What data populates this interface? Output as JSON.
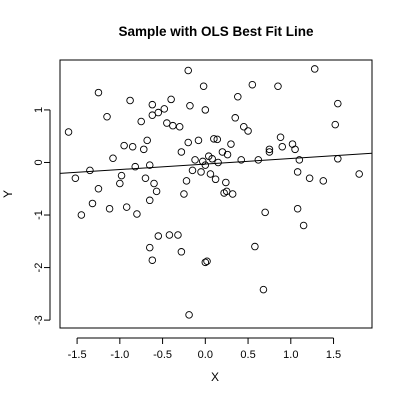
{
  "chart_data": {
    "type": "scatter",
    "title": "Sample with OLS Best Fit Line",
    "xlabel": "X",
    "ylabel": "Y",
    "xlim": [
      -1.7,
      1.95
    ],
    "ylim": [
      -3.15,
      1.95
    ],
    "xticks": [
      -1.5,
      -1.0,
      -0.5,
      0.0,
      0.5,
      1.0,
      1.5
    ],
    "xtick_labels": [
      "-1.5",
      "-1.0",
      "-0.5",
      "0.0",
      "0.5",
      "1.0",
      "1.5"
    ],
    "yticks": [
      -3,
      -2,
      -1,
      0,
      1
    ],
    "ytick_labels": [
      "-3",
      "-2",
      "-1",
      "0",
      "1"
    ],
    "grid": false,
    "fit_line": {
      "label": "OLS",
      "intercept": -0.03,
      "slope": 0.105
    },
    "points": [
      {
        "x": -1.6,
        "y": 0.58
      },
      {
        "x": -1.52,
        "y": -0.3
      },
      {
        "x": -1.45,
        "y": -1.0
      },
      {
        "x": -1.35,
        "y": -0.15
      },
      {
        "x": -1.32,
        "y": -0.78
      },
      {
        "x": -1.25,
        "y": 1.33
      },
      {
        "x": -1.25,
        "y": -0.5
      },
      {
        "x": -1.15,
        "y": 0.87
      },
      {
        "x": -1.12,
        "y": -0.88
      },
      {
        "x": -1.08,
        "y": 0.08
      },
      {
        "x": -1.0,
        "y": -0.4
      },
      {
        "x": -0.98,
        "y": -0.25
      },
      {
        "x": -0.95,
        "y": 0.32
      },
      {
        "x": -0.92,
        "y": -0.85
      },
      {
        "x": -0.88,
        "y": 1.18
      },
      {
        "x": -0.85,
        "y": 0.3
      },
      {
        "x": -0.82,
        "y": -0.08
      },
      {
        "x": -0.8,
        "y": -0.98
      },
      {
        "x": -0.75,
        "y": 0.78
      },
      {
        "x": -0.72,
        "y": 0.25
      },
      {
        "x": -0.7,
        "y": -0.3
      },
      {
        "x": -0.68,
        "y": 0.42
      },
      {
        "x": -0.65,
        "y": -0.05
      },
      {
        "x": -0.65,
        "y": -0.72
      },
      {
        "x": -0.62,
        "y": 1.1
      },
      {
        "x": -0.62,
        "y": 0.9
      },
      {
        "x": -0.6,
        "y": -0.4
      },
      {
        "x": -0.65,
        "y": -1.62
      },
      {
        "x": -0.62,
        "y": -1.86
      },
      {
        "x": -0.57,
        "y": -0.55
      },
      {
        "x": -0.55,
        "y": 0.95
      },
      {
        "x": -0.55,
        "y": -1.4
      },
      {
        "x": -0.48,
        "y": 1.02
      },
      {
        "x": -0.45,
        "y": 0.75
      },
      {
        "x": -0.42,
        "y": -1.38
      },
      {
        "x": -0.4,
        "y": 1.2
      },
      {
        "x": -0.38,
        "y": 0.7
      },
      {
        "x": -0.32,
        "y": -1.38
      },
      {
        "x": -0.3,
        "y": 0.68
      },
      {
        "x": -0.28,
        "y": 0.2
      },
      {
        "x": -0.25,
        "y": -0.6
      },
      {
        "x": -0.22,
        "y": -0.35
      },
      {
        "x": -0.2,
        "y": 0.38
      },
      {
        "x": -0.2,
        "y": 1.75
      },
      {
        "x": -0.18,
        "y": 1.08
      },
      {
        "x": -0.15,
        "y": -0.15
      },
      {
        "x": -0.12,
        "y": 0.05
      },
      {
        "x": -0.08,
        "y": 0.42
      },
      {
        "x": -0.05,
        "y": -0.18
      },
      {
        "x": -0.03,
        "y": 0.02
      },
      {
        "x": -0.02,
        "y": 1.45
      },
      {
        "x": 0.0,
        "y": 1.0
      },
      {
        "x": 0.02,
        "y": -1.88
      },
      {
        "x": 0.04,
        "y": 0.12
      },
      {
        "x": 0.06,
        "y": -0.22
      },
      {
        "x": 0.08,
        "y": 0.07
      },
      {
        "x": 0.1,
        "y": 0.45
      },
      {
        "x": 0.12,
        "y": -0.32
      },
      {
        "x": 0.14,
        "y": 0.44
      },
      {
        "x": 0.15,
        "y": 0.0
      },
      {
        "x": 0.2,
        "y": 0.2
      },
      {
        "x": 0.22,
        "y": -0.58
      },
      {
        "x": 0.24,
        "y": -0.38
      },
      {
        "x": 0.26,
        "y": 0.15
      },
      {
        "x": 0.3,
        "y": 0.35
      },
      {
        "x": 0.32,
        "y": -0.6
      },
      {
        "x": 0.35,
        "y": 0.85
      },
      {
        "x": 0.38,
        "y": 1.25
      },
      {
        "x": 0.42,
        "y": 0.05
      },
      {
        "x": 0.45,
        "y": 0.68
      },
      {
        "x": 0.5,
        "y": 0.6
      },
      {
        "x": 0.55,
        "y": 1.48
      },
      {
        "x": 0.58,
        "y": -1.6
      },
      {
        "x": 0.62,
        "y": 0.05
      },
      {
        "x": 0.68,
        "y": -2.42
      },
      {
        "x": 0.7,
        "y": -0.95
      },
      {
        "x": 0.75,
        "y": 0.25
      },
      {
        "x": 0.75,
        "y": 0.2
      },
      {
        "x": 0.85,
        "y": 1.45
      },
      {
        "x": 0.88,
        "y": 0.48
      },
      {
        "x": 0.9,
        "y": 0.3
      },
      {
        "x": 1.02,
        "y": 0.35
      },
      {
        "x": 1.05,
        "y": 0.25
      },
      {
        "x": 1.08,
        "y": -0.18
      },
      {
        "x": 1.08,
        "y": -0.88
      },
      {
        "x": 1.1,
        "y": 0.05
      },
      {
        "x": 1.15,
        "y": -1.2
      },
      {
        "x": 1.22,
        "y": -0.3
      },
      {
        "x": 1.28,
        "y": 1.78
      },
      {
        "x": 1.38,
        "y": -0.35
      },
      {
        "x": 1.52,
        "y": 0.72
      },
      {
        "x": 1.55,
        "y": 1.12
      },
      {
        "x": 1.55,
        "y": 0.07
      },
      {
        "x": 1.8,
        "y": -0.22
      },
      {
        "x": -0.19,
        "y": -2.9
      },
      {
        "x": -0.28,
        "y": -1.7
      },
      {
        "x": 0.0,
        "y": -1.9
      },
      {
        "x": 0.0,
        "y": -0.05
      },
      {
        "x": 0.25,
        "y": -0.55
      }
    ]
  }
}
